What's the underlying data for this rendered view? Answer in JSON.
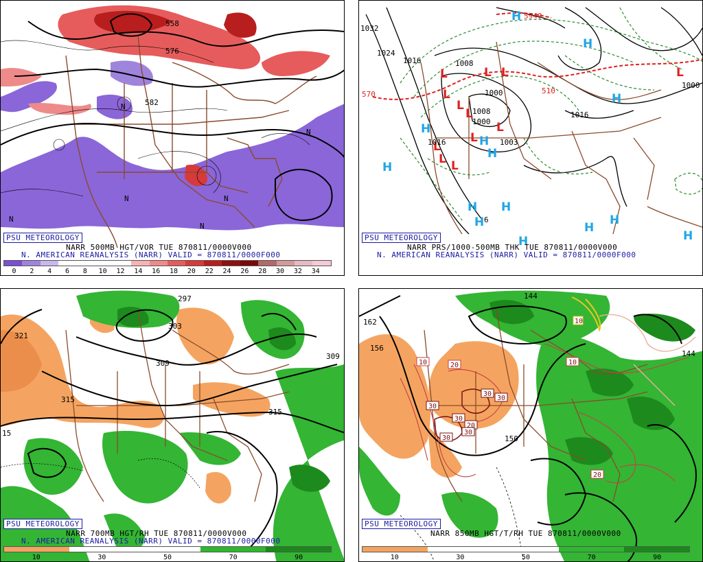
{
  "panels": {
    "p1": {
      "badge": "PSU METEOROLOGY",
      "caption1": "NARR 500MB HGT/VOR TUE 870811/0000V000",
      "caption2": "N. AMERICAN REANALYSIS (NARR) VALID = 870811/0000F000",
      "contour_labels": [
        "558",
        "576",
        "582"
      ],
      "colorbar": {
        "ticks": [
          "0",
          "2",
          "4",
          "6",
          "8",
          "10",
          "12",
          "14",
          "16",
          "18",
          "20",
          "22",
          "24",
          "26",
          "28",
          "30",
          "32",
          "34"
        ],
        "colors": [
          "#7a4fd0",
          "#9f84dc",
          "#c8b8ec",
          "#ffffff",
          "#ffffff",
          "#ffffff",
          "#ffffff",
          "#f6b3b3",
          "#ef8a8a",
          "#e65c5c",
          "#d63a3a",
          "#b81e1e",
          "#8e1010",
          "#7a0a0a",
          "#b06a6a",
          "#d49999",
          "#e7b9c4",
          "#f5c9d6"
        ]
      }
    },
    "p2": {
      "badge": "PSU METEOROLOGY",
      "caption1": "NARR PRS/1000-500MB THK TUE 870811/0000V000",
      "caption2": "N. AMERICAN REANALYSIS (NARR) VALID = 870811/0000F000",
      "contour_labels": [
        "1024",
        "1016",
        "1008",
        "1000",
        "1016",
        "1008",
        "1000",
        "1003",
        "1000",
        "570",
        "1032",
        "5940",
        "1016",
        "6",
        "510"
      ],
      "high_symbol": "H",
      "low_symbol": "L"
    },
    "p3": {
      "badge": "PSU METEOROLOGY",
      "caption1": "NARR 700MB HGT/RH TUE 870811/0000V000",
      "caption2": "N. AMERICAN REANALYSIS (NARR) VALID = 870811/0000F000",
      "contour_labels": [
        "297",
        "303",
        "309",
        "321",
        "315",
        "309",
        "315",
        "15"
      ],
      "colorbar": {
        "ticks": [
          "10",
          "30",
          "50",
          "70",
          "90"
        ],
        "colors": [
          "#f4a460",
          "#ffffff",
          "#ffffff",
          "#2eb82e",
          "#1a8a1a"
        ]
      }
    },
    "p4": {
      "badge": "PSU METEOROLOGY",
      "caption1": "NARR 850MB HGT/T/RH TUE 870811/0000V000",
      "contour_labels": [
        "162",
        "156",
        "144",
        "150",
        "144",
        "10",
        "20",
        "30",
        "30",
        "30",
        "30",
        "20",
        "30",
        "30",
        "10",
        "20",
        "10"
      ],
      "colorbar": {
        "ticks": [
          "10",
          "30",
          "50",
          "70",
          "90"
        ],
        "colors": [
          "#f4a460",
          "#ffffff",
          "#ffffff",
          "#2eb82e",
          "#1a8a1a"
        ]
      }
    }
  }
}
